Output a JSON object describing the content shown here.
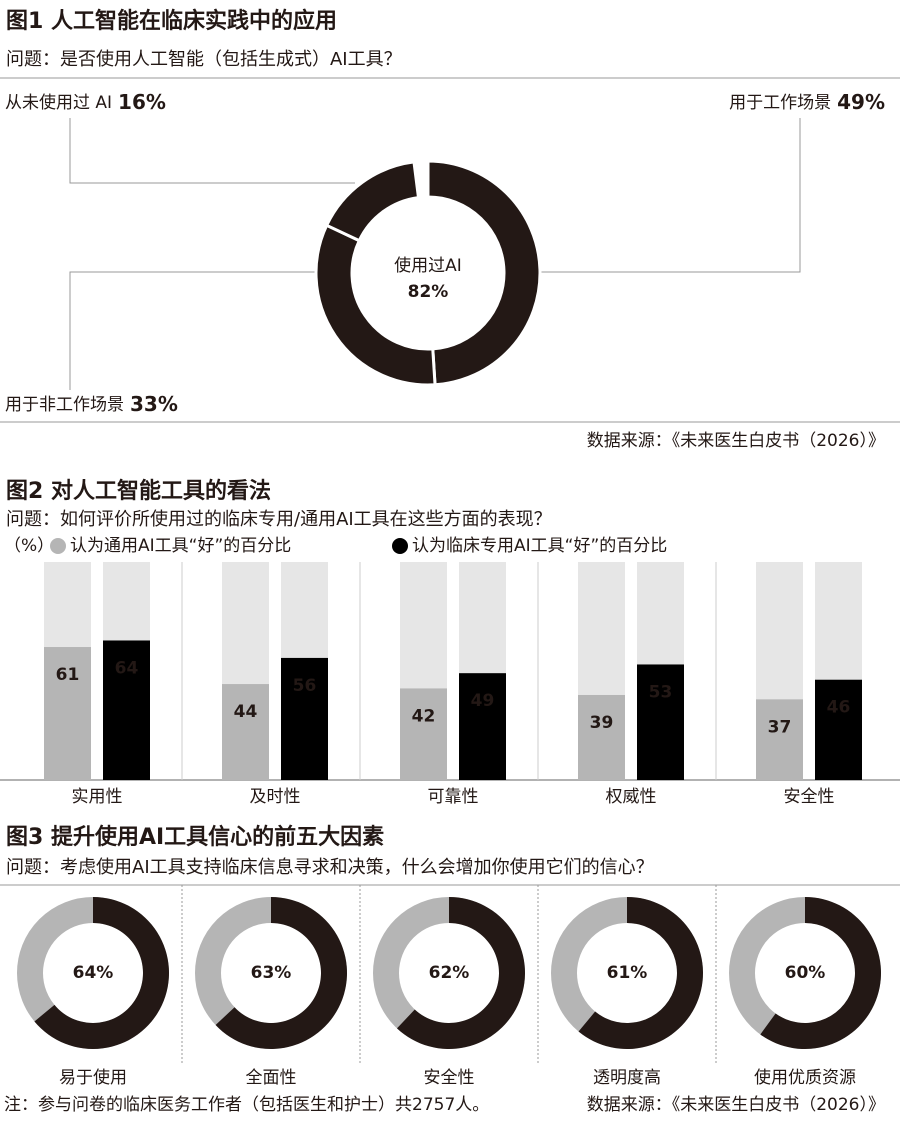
{
  "chart_data": [
    {
      "type": "donut",
      "title": "图1 人工智能在临床实践中的应用",
      "subtitle": "问题：是否使用人工智能（包括生成式）AI工具？",
      "categories": [
        "用于工作场景",
        "用于非工作场景",
        "从未使用过 AI"
      ],
      "values": [
        49,
        33,
        16
      ],
      "value_labels": [
        "49%",
        "33%",
        "16%"
      ],
      "color": "#231815",
      "center_label": "使用过AI",
      "center_value": 82,
      "center_value_label": "82%",
      "source": "数据来源：《未来医生白皮书（2026）》"
    },
    {
      "type": "bar",
      "title": "图2 对人工智能工具的看法",
      "subtitle": "问题：如何评价所使用过的临床专用/通用AI工具在这些方面的表现？",
      "unit_label": "（%）",
      "categories": [
        "实用性",
        "及时性",
        "可靠性",
        "权威性",
        "安全性"
      ],
      "ylim": [
        0,
        100
      ],
      "series": [
        {
          "name": "认为通用AI工具“好”的百分比",
          "color": "#b5b5b5",
          "values": [
            61,
            44,
            42,
            39,
            37
          ]
        },
        {
          "name": "认为临床专用AI工具“好”的百分比",
          "color": "#000000",
          "values": [
            64,
            56,
            49,
            53,
            46
          ]
        }
      ]
    },
    {
      "type": "donuts",
      "title": "图3 提升使用AI工具信心的前五大因素",
      "subtitle": "问题：考虑使用AI工具支持临床信息寻求和决策，什么会增加你使用它们的信心？",
      "categories": [
        "易于使用",
        "全面性",
        "安全性",
        "透明度高",
        "使用优质资源"
      ],
      "values": [
        64,
        63,
        62,
        61,
        60
      ],
      "value_labels": [
        "64%",
        "63%",
        "62%",
        "61%",
        "60%"
      ],
      "color": "#231815",
      "rest_color": "#b5b5b5"
    }
  ],
  "note": "注：参与问卷的临床医务工作者（包括医生和护士）共2757人。",
  "source": "数据来源：《未来医生白皮书（2026）》"
}
